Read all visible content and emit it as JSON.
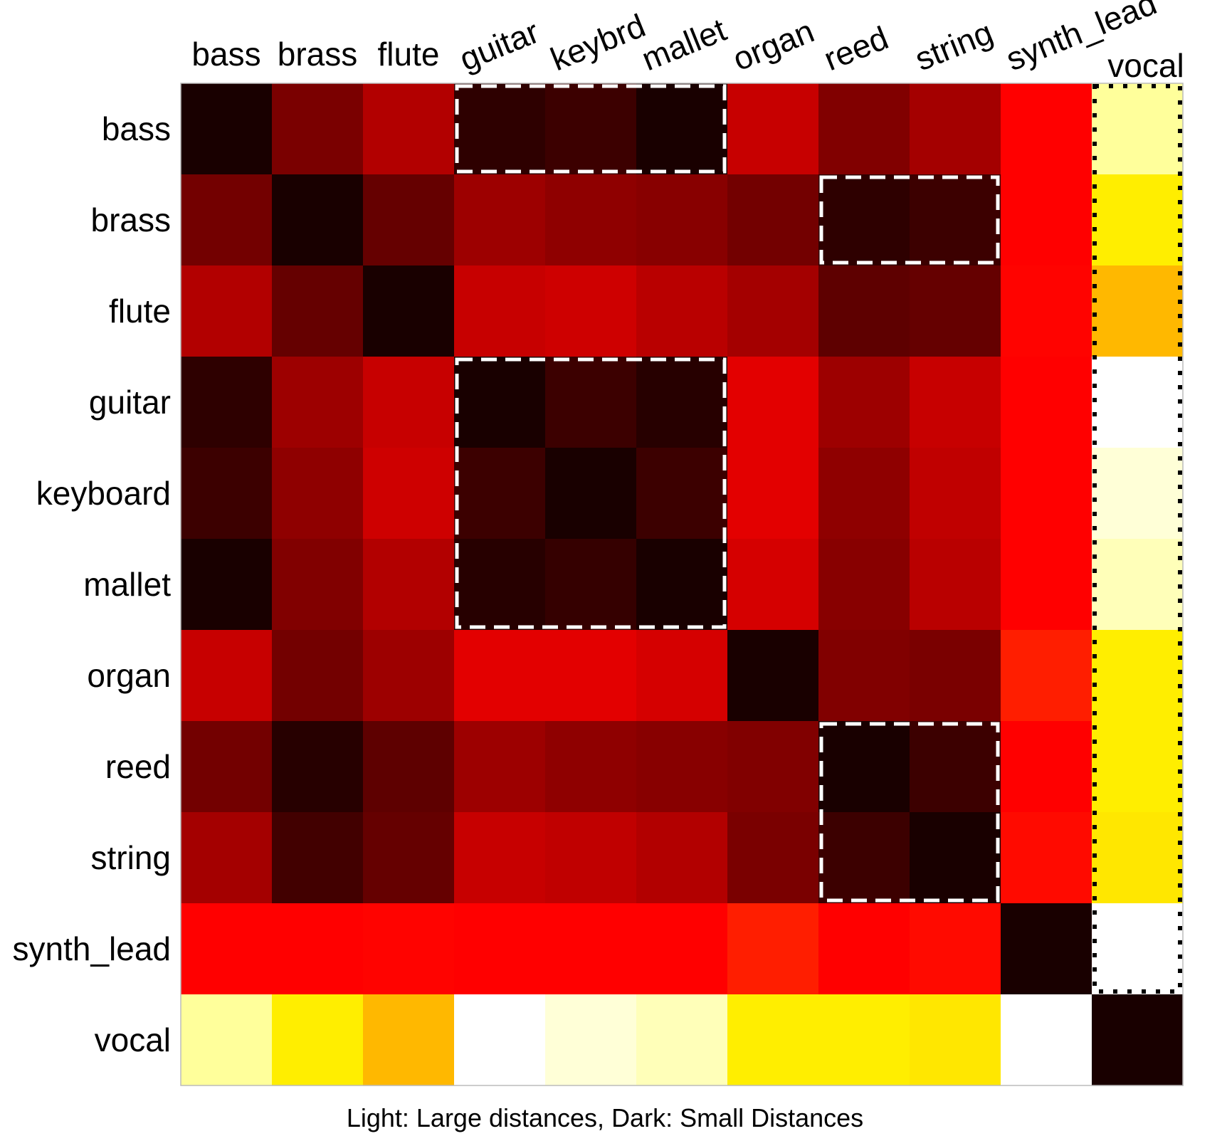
{
  "chart_data": {
    "type": "heatmap",
    "x_labels": [
      "bass",
      "brass",
      "flute",
      "guitar",
      "keybrd",
      "mallet",
      "organ",
      "reed",
      "string",
      "synth_lead",
      "vocal"
    ],
    "y_labels": [
      "bass",
      "brass",
      "flute",
      "guitar",
      "keyboard",
      "mallet",
      "organ",
      "reed",
      "string",
      "synth_lead",
      "vocal"
    ],
    "caption": "Light: Large distances, Dark: Small Distances",
    "colormap": "hot",
    "value_range": [
      0,
      1
    ],
    "values": [
      [
        0.02,
        0.16,
        0.24,
        0.05,
        0.07,
        0.02,
        0.27,
        0.17,
        0.22,
        0.35,
        0.9
      ],
      [
        0.15,
        0.02,
        0.13,
        0.21,
        0.19,
        0.18,
        0.15,
        0.05,
        0.07,
        0.35,
        0.72
      ],
      [
        0.24,
        0.13,
        0.02,
        0.27,
        0.28,
        0.25,
        0.22,
        0.12,
        0.13,
        0.37,
        0.64
      ],
      [
        0.05,
        0.21,
        0.27,
        0.02,
        0.07,
        0.04,
        0.31,
        0.21,
        0.27,
        0.35,
        1.0
      ],
      [
        0.07,
        0.19,
        0.28,
        0.07,
        0.02,
        0.07,
        0.31,
        0.19,
        0.26,
        0.35,
        0.96
      ],
      [
        0.02,
        0.17,
        0.24,
        0.04,
        0.06,
        0.02,
        0.29,
        0.18,
        0.25,
        0.35,
        0.93
      ],
      [
        0.27,
        0.15,
        0.21,
        0.31,
        0.31,
        0.29,
        0.02,
        0.17,
        0.16,
        0.41,
        0.72
      ],
      [
        0.15,
        0.04,
        0.12,
        0.21,
        0.19,
        0.18,
        0.17,
        0.02,
        0.07,
        0.35,
        0.72
      ],
      [
        0.22,
        0.08,
        0.13,
        0.27,
        0.26,
        0.24,
        0.16,
        0.07,
        0.02,
        0.38,
        0.71
      ],
      [
        0.35,
        0.35,
        0.37,
        0.35,
        0.35,
        0.35,
        0.41,
        0.35,
        0.38,
        0.02,
        1.0
      ],
      [
        0.9,
        0.72,
        0.64,
        1.0,
        0.96,
        0.93,
        0.72,
        0.72,
        0.71,
        1.0,
        0.02
      ]
    ],
    "highlight_boxes": [
      {
        "rows": [
          0,
          0
        ],
        "cols": [
          3,
          5
        ],
        "style": "dashed"
      },
      {
        "rows": [
          1,
          1
        ],
        "cols": [
          7,
          8
        ],
        "style": "dashed"
      },
      {
        "rows": [
          3,
          5
        ],
        "cols": [
          3,
          5
        ],
        "style": "dashed"
      },
      {
        "rows": [
          7,
          8
        ],
        "cols": [
          7,
          8
        ],
        "style": "dashed"
      },
      {
        "rows": [
          0,
          9
        ],
        "cols": [
          10,
          10
        ],
        "style": "dotted"
      }
    ]
  }
}
